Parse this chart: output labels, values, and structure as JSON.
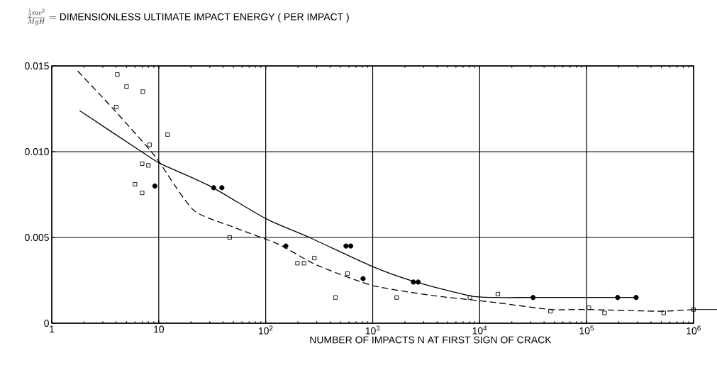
{
  "chart_data": {
    "type": "scatter",
    "title": "\\frac{\\frac{1}{2}mv^{2}}{MgH}=\\mbox{DIMENSIONLESS ULTIMATE IMPACT ENERGY ( PER IMPACT )}",
    "xlabel": "NUMBER OF IMPACTS N AT FIRST SIGN OF CRACK",
    "log": "x",
    "grid": true,
    "xlim": [
      1,
      1000000
    ],
    "xticks": [
      1,
      10,
      {
        "value": 100,
        "label": "10$^{2}$"
      },
      {
        "value": 1000,
        "label": "10$^{3}$"
      },
      {
        "value": 10000,
        "label": "10$^{4}$"
      },
      {
        "value": 100000,
        "label": "10$^{5}$"
      },
      {
        "value": 1000000,
        "label": "10$^{6}$"
      }
    ],
    "ylim": [
      0,
      0.015
    ],
    "yticks": [
      0,
      {
        "value": 0.005,
        "label": "0.005"
      },
      {
        "value": 0.01,
        "label": "0.010"
      },
      {
        "value": 0.015,
        "label": "0.015"
      }
    ],
    "series": [
      {
        "marker": "square",
        "color": "#000000",
        "x": [
          4.1,
          5.0,
          7.1,
          4.0,
          12.1,
          8.2,
          7.0,
          8.0,
          6.0,
          7.0,
          46,
          198,
          228,
          285,
          581,
          448,
          1675,
          8110,
          14800,
          45900,
          105000,
          147000,
          525000,
          1000000
        ],
        "values": [
          0.0145,
          0.0138,
          0.0135,
          0.0126,
          0.011,
          0.0104,
          0.0093,
          0.0092,
          0.0081,
          0.0076,
          0.005,
          0.0035,
          0.0035,
          0.0038,
          0.0029,
          0.0015,
          0.0015,
          0.0015,
          0.0017,
          0.0007,
          0.0009,
          0.0006,
          0.0006,
          0.0008
        ]
      },
      {
        "marker": "circle",
        "color": "#000000",
        "x": [
          9.2,
          32.6,
          38.9,
          154,
          563,
          623,
          813,
          2404,
          2661,
          31600,
          195000,
          290000
        ],
        "values": [
          0.008,
          0.0079,
          0.0079,
          0.0045,
          0.0045,
          0.0045,
          0.0026,
          0.0024,
          0.0024,
          0.0015,
          0.0015,
          0.0015
        ]
      },
      {
        "type": "line",
        "line_style": "solid",
        "color": "#000000",
        "x": [
          1.82,
          6.9,
          10.4,
          30,
          100,
          256,
          1000,
          2530,
          8110,
          13800,
          31600,
          195000,
          290000
        ],
        "values": [
          0.0124,
          0.01,
          0.0093,
          0.008,
          0.0061,
          0.005,
          0.0033,
          0.0024,
          0.0016,
          0.0015,
          0.0015,
          0.0015,
          0.0015
        ]
      },
      {
        "type": "line",
        "line_style": "dashed",
        "color": "#000000",
        "x": [
          1.75,
          3.75,
          7.26,
          9.85,
          21.1,
          50,
          132,
          298,
          1000,
          3800,
          14300,
          45700,
          98000,
          480000,
          1000000
        ],
        "values": [
          0.0147,
          0.0125,
          0.0105,
          0.0095,
          0.0066,
          0.0056,
          0.0046,
          0.0034,
          0.0022,
          0.0016,
          0.0012,
          0.0008,
          0.0008,
          0.0007,
          0.0008
        ]
      }
    ]
  }
}
